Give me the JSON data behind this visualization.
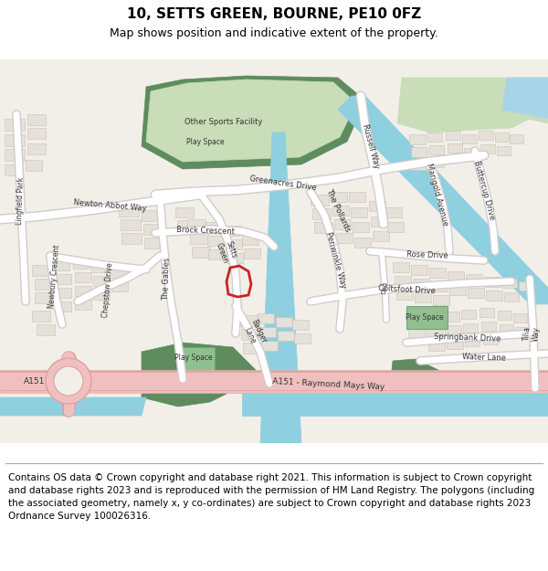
{
  "title": "10, SETTS GREEN, BOURNE, PE10 0FZ",
  "subtitle": "Map shows position and indicative extent of the property.",
  "footer_text": "Contains OS data © Crown copyright and database right 2021. This information is subject to Crown copyright and database rights 2023 and is reproduced with the permission of HM Land Registry. The polygons (including the associated geometry, namely x, y co-ordinates) are subject to Crown copyright and database rights 2023 Ordnance Survey 100026316.",
  "bg_color": "#ffffff",
  "map_bg": "#f2efe9",
  "green_dark": "#5e8c5e",
  "green_light": "#c8ddb8",
  "blue_canal": "#8ecfe0",
  "blue_water": "#a8d4e8",
  "pink_road": "#f0c0c0",
  "building_color": "#e5e0d8",
  "building_edge": "#c8c0b8",
  "road_white": "#ffffff",
  "road_gray": "#d0cccc",
  "highlight_red": "#cc2222",
  "title_fontsize": 11,
  "subtitle_fontsize": 9,
  "footer_fontsize": 7.5
}
